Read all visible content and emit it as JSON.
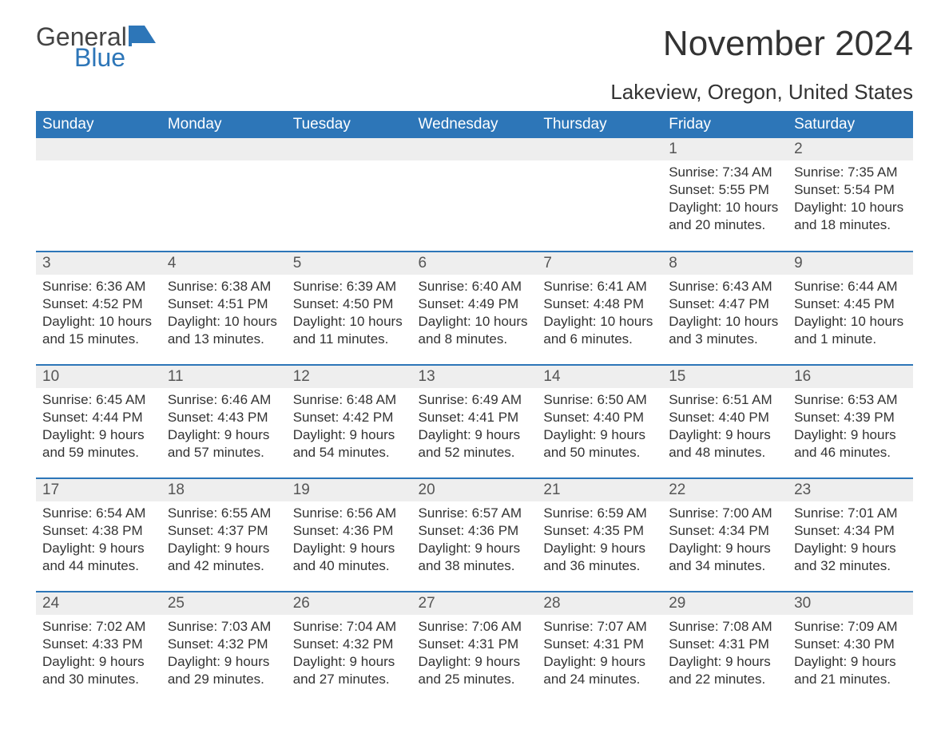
{
  "logo": {
    "general": "General",
    "blue": "Blue"
  },
  "title": "November 2024",
  "location": "Lakeview, Oregon, United States",
  "colors": {
    "accent": "#2d76b8",
    "header_bg": "#2d76b8",
    "header_text": "#ffffff",
    "dayrow_bg": "#eeeeee",
    "text": "#333333",
    "background": "#ffffff"
  },
  "layout": {
    "columns": 7,
    "rows": 5,
    "week_start": "Sunday"
  },
  "weekdays": [
    "Sunday",
    "Monday",
    "Tuesday",
    "Wednesday",
    "Thursday",
    "Friday",
    "Saturday"
  ],
  "labels": {
    "sunrise": "Sunrise:",
    "sunset": "Sunset:",
    "daylight": "Daylight:"
  },
  "weeks": [
    [
      {
        "empty": true
      },
      {
        "empty": true
      },
      {
        "empty": true
      },
      {
        "empty": true
      },
      {
        "empty": true
      },
      {
        "day": "1",
        "sunrise": "7:34 AM",
        "sunset": "5:55 PM",
        "daylight": "10 hours and 20 minutes."
      },
      {
        "day": "2",
        "sunrise": "7:35 AM",
        "sunset": "5:54 PM",
        "daylight": "10 hours and 18 minutes."
      }
    ],
    [
      {
        "day": "3",
        "sunrise": "6:36 AM",
        "sunset": "4:52 PM",
        "daylight": "10 hours and 15 minutes."
      },
      {
        "day": "4",
        "sunrise": "6:38 AM",
        "sunset": "4:51 PM",
        "daylight": "10 hours and 13 minutes."
      },
      {
        "day": "5",
        "sunrise": "6:39 AM",
        "sunset": "4:50 PM",
        "daylight": "10 hours and 11 minutes."
      },
      {
        "day": "6",
        "sunrise": "6:40 AM",
        "sunset": "4:49 PM",
        "daylight": "10 hours and 8 minutes."
      },
      {
        "day": "7",
        "sunrise": "6:41 AM",
        "sunset": "4:48 PM",
        "daylight": "10 hours and 6 minutes."
      },
      {
        "day": "8",
        "sunrise": "6:43 AM",
        "sunset": "4:47 PM",
        "daylight": "10 hours and 3 minutes."
      },
      {
        "day": "9",
        "sunrise": "6:44 AM",
        "sunset": "4:45 PM",
        "daylight": "10 hours and 1 minute."
      }
    ],
    [
      {
        "day": "10",
        "sunrise": "6:45 AM",
        "sunset": "4:44 PM",
        "daylight": "9 hours and 59 minutes."
      },
      {
        "day": "11",
        "sunrise": "6:46 AM",
        "sunset": "4:43 PM",
        "daylight": "9 hours and 57 minutes."
      },
      {
        "day": "12",
        "sunrise": "6:48 AM",
        "sunset": "4:42 PM",
        "daylight": "9 hours and 54 minutes."
      },
      {
        "day": "13",
        "sunrise": "6:49 AM",
        "sunset": "4:41 PM",
        "daylight": "9 hours and 52 minutes."
      },
      {
        "day": "14",
        "sunrise": "6:50 AM",
        "sunset": "4:40 PM",
        "daylight": "9 hours and 50 minutes."
      },
      {
        "day": "15",
        "sunrise": "6:51 AM",
        "sunset": "4:40 PM",
        "daylight": "9 hours and 48 minutes."
      },
      {
        "day": "16",
        "sunrise": "6:53 AM",
        "sunset": "4:39 PM",
        "daylight": "9 hours and 46 minutes."
      }
    ],
    [
      {
        "day": "17",
        "sunrise": "6:54 AM",
        "sunset": "4:38 PM",
        "daylight": "9 hours and 44 minutes."
      },
      {
        "day": "18",
        "sunrise": "6:55 AM",
        "sunset": "4:37 PM",
        "daylight": "9 hours and 42 minutes."
      },
      {
        "day": "19",
        "sunrise": "6:56 AM",
        "sunset": "4:36 PM",
        "daylight": "9 hours and 40 minutes."
      },
      {
        "day": "20",
        "sunrise": "6:57 AM",
        "sunset": "4:36 PM",
        "daylight": "9 hours and 38 minutes."
      },
      {
        "day": "21",
        "sunrise": "6:59 AM",
        "sunset": "4:35 PM",
        "daylight": "9 hours and 36 minutes."
      },
      {
        "day": "22",
        "sunrise": "7:00 AM",
        "sunset": "4:34 PM",
        "daylight": "9 hours and 34 minutes."
      },
      {
        "day": "23",
        "sunrise": "7:01 AM",
        "sunset": "4:34 PM",
        "daylight": "9 hours and 32 minutes."
      }
    ],
    [
      {
        "day": "24",
        "sunrise": "7:02 AM",
        "sunset": "4:33 PM",
        "daylight": "9 hours and 30 minutes."
      },
      {
        "day": "25",
        "sunrise": "7:03 AM",
        "sunset": "4:32 PM",
        "daylight": "9 hours and 29 minutes."
      },
      {
        "day": "26",
        "sunrise": "7:04 AM",
        "sunset": "4:32 PM",
        "daylight": "9 hours and 27 minutes."
      },
      {
        "day": "27",
        "sunrise": "7:06 AM",
        "sunset": "4:31 PM",
        "daylight": "9 hours and 25 minutes."
      },
      {
        "day": "28",
        "sunrise": "7:07 AM",
        "sunset": "4:31 PM",
        "daylight": "9 hours and 24 minutes."
      },
      {
        "day": "29",
        "sunrise": "7:08 AM",
        "sunset": "4:31 PM",
        "daylight": "9 hours and 22 minutes."
      },
      {
        "day": "30",
        "sunrise": "7:09 AM",
        "sunset": "4:30 PM",
        "daylight": "9 hours and 21 minutes."
      }
    ]
  ]
}
